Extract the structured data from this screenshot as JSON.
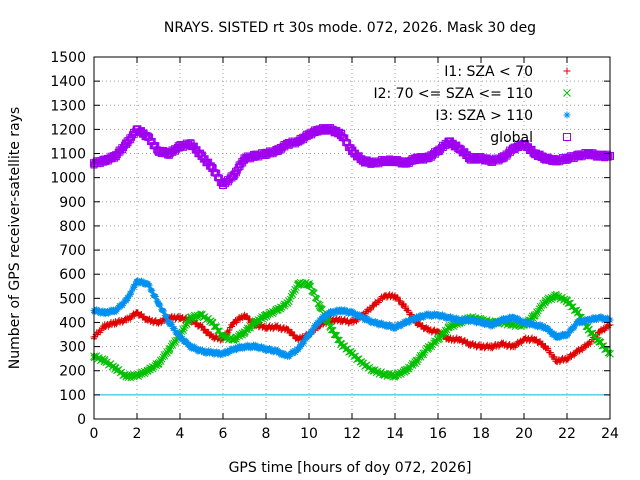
{
  "chart_data": {
    "type": "scatter",
    "title": "NRAYS. SISTED rt 30s mode. 072, 2026. Mask 30 deg",
    "xlabel": "GPS time [hours of doy 072, 2026]",
    "ylabel": "Number of GPS receiver-satellite rays",
    "xlim": [
      0,
      24
    ],
    "ylim": [
      0,
      1500
    ],
    "xticks": [
      0,
      2,
      4,
      6,
      8,
      10,
      12,
      14,
      16,
      18,
      20,
      22,
      24
    ],
    "yticks": [
      0,
      100,
      200,
      300,
      400,
      500,
      600,
      700,
      800,
      900,
      1000,
      1100,
      1200,
      1300,
      1400,
      1500
    ],
    "grid": true,
    "legend_position": "top-right",
    "reference_line": {
      "y": 100,
      "color": "#00c0e0"
    },
    "series": [
      {
        "name": "I1: SZA < 70",
        "color": "#e00000",
        "marker": "+",
        "x": [
          0,
          0.5,
          1,
          1.5,
          2,
          2.5,
          3,
          3.5,
          4,
          4.5,
          5,
          5.5,
          6,
          6.5,
          7,
          7.5,
          8,
          8.5,
          9,
          9.5,
          10,
          10.5,
          11,
          11.5,
          12,
          12.5,
          13,
          13.5,
          14,
          14.5,
          15,
          15.5,
          16,
          16.5,
          17,
          17.5,
          18,
          18.5,
          19,
          19.5,
          20,
          20.5,
          21,
          21.5,
          22,
          22.5,
          23,
          23.5,
          24
        ],
        "values": [
          340,
          385,
          400,
          410,
          440,
          410,
          400,
          420,
          420,
          410,
          380,
          340,
          330,
          400,
          430,
          390,
          380,
          380,
          370,
          330,
          350,
          390,
          410,
          410,
          400,
          430,
          470,
          510,
          510,
          460,
          400,
          370,
          360,
          330,
          330,
          310,
          300,
          300,
          310,
          300,
          330,
          330,
          300,
          240,
          250,
          280,
          310,
          360,
          390
        ]
      },
      {
        "name": "I2: 70 <= SZA <= 110",
        "color": "#00c000",
        "marker": "x",
        "x": [
          0,
          0.5,
          1,
          1.5,
          2,
          2.5,
          3,
          3.5,
          4,
          4.5,
          5,
          5.5,
          6,
          6.5,
          7,
          7.5,
          8,
          8.5,
          9,
          9.5,
          10,
          10.5,
          11,
          11.5,
          12,
          12.5,
          13,
          13.5,
          14,
          14.5,
          15,
          15.5,
          16,
          16.5,
          17,
          17.5,
          18,
          18.5,
          19,
          19.5,
          20,
          20.5,
          21,
          21.5,
          22,
          22.5,
          23,
          23.5,
          24
        ],
        "values": [
          260,
          240,
          210,
          175,
          180,
          200,
          230,
          290,
          350,
          420,
          430,
          400,
          340,
          330,
          360,
          400,
          430,
          450,
          480,
          560,
          560,
          470,
          380,
          310,
          270,
          230,
          200,
          185,
          180,
          200,
          240,
          290,
          330,
          380,
          400,
          420,
          410,
          400,
          400,
          390,
          390,
          430,
          490,
          510,
          490,
          440,
          370,
          320,
          270
        ]
      },
      {
        "name": "I3: SZA > 110",
        "color": "#0090f0",
        "marker": "*",
        "x": [
          0,
          0.5,
          1,
          1.5,
          2,
          2.5,
          3,
          3.5,
          4,
          4.5,
          5,
          5.5,
          6,
          6.5,
          7,
          7.5,
          8,
          8.5,
          9,
          9.5,
          10,
          10.5,
          11,
          11.5,
          12,
          12.5,
          13,
          13.5,
          14,
          14.5,
          15,
          15.5,
          16,
          16.5,
          17,
          17.5,
          18,
          18.5,
          19,
          19.5,
          20,
          20.5,
          21,
          21.5,
          22,
          22.5,
          23,
          23.5,
          24
        ],
        "values": [
          450,
          440,
          450,
          490,
          570,
          560,
          480,
          400,
          340,
          300,
          280,
          275,
          270,
          290,
          300,
          300,
          290,
          280,
          260,
          290,
          350,
          410,
          440,
          450,
          440,
          420,
          400,
          390,
          380,
          400,
          420,
          430,
          430,
          420,
          410,
          410,
          400,
          390,
          410,
          420,
          400,
          390,
          380,
          340,
          350,
          400,
          410,
          420,
          410
        ]
      },
      {
        "name": "global",
        "color": "#a000f0",
        "marker": "square",
        "x": [
          0,
          0.5,
          1,
          1.5,
          2,
          2.5,
          3,
          3.5,
          4,
          4.5,
          5,
          5.5,
          6,
          6.5,
          7,
          7.5,
          8,
          8.5,
          9,
          9.5,
          10,
          10.5,
          11,
          11.5,
          12,
          12.5,
          13,
          13.5,
          14,
          14.5,
          15,
          15.5,
          16,
          16.5,
          17,
          17.5,
          18,
          18.5,
          19,
          19.5,
          20,
          20.5,
          21,
          21.5,
          22,
          22.5,
          23,
          23.5,
          24
        ],
        "values": [
          1060,
          1070,
          1090,
          1140,
          1200,
          1170,
          1110,
          1100,
          1130,
          1140,
          1090,
          1040,
          970,
          1010,
          1080,
          1090,
          1100,
          1110,
          1140,
          1150,
          1180,
          1200,
          1200,
          1180,
          1110,
          1070,
          1060,
          1070,
          1070,
          1060,
          1080,
          1080,
          1110,
          1150,
          1120,
          1080,
          1080,
          1070,
          1080,
          1120,
          1140,
          1100,
          1080,
          1070,
          1080,
          1090,
          1100,
          1090,
          1090
        ]
      }
    ]
  }
}
